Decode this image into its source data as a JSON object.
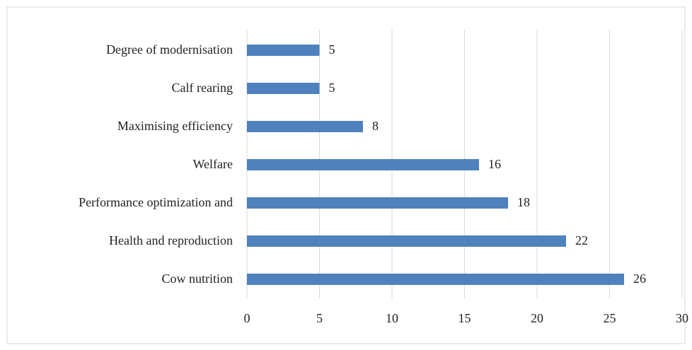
{
  "chart_data": {
    "type": "bar",
    "orientation": "horizontal",
    "categories": [
      "Degree of modernisation",
      "Calf rearing",
      "Maximising efficiency",
      "Welfare",
      "Performance optimization and",
      "Health and reproduction",
      "Cow nutrition"
    ],
    "values": [
      5,
      5,
      8,
      16,
      18,
      22,
      26
    ],
    "color": "#4f81bd",
    "xlim": [
      0,
      30
    ],
    "xticks": [
      0,
      5,
      10,
      15,
      20,
      25,
      30
    ],
    "grid": true
  }
}
